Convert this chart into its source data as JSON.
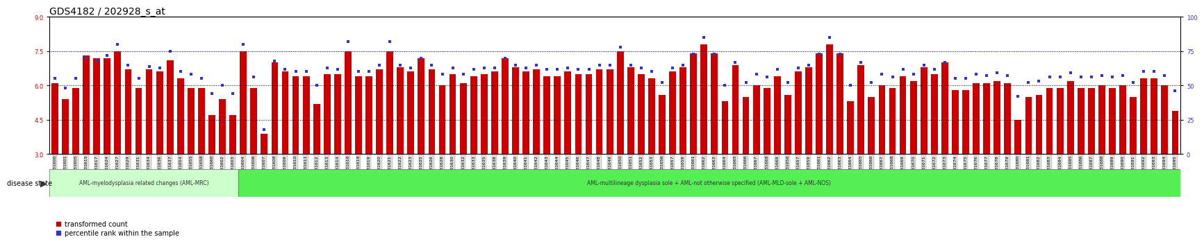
{
  "title": "GDS4182 / 202928_s_at",
  "samples": [
    "GSM531600",
    "GSM531601",
    "GSM531605",
    "GSM531615",
    "GSM531617",
    "GSM531624",
    "GSM531627",
    "GSM531629",
    "GSM531631",
    "GSM531634",
    "GSM531636",
    "GSM531637",
    "GSM531654",
    "GSM531655",
    "GSM531658",
    "GSM531660",
    "GSM531602",
    "GSM531603",
    "GSM531604",
    "GSM531606",
    "GSM531607",
    "GSM531608",
    "GSM531609",
    "GSM531610",
    "GSM531611",
    "GSM531612",
    "GSM531613",
    "GSM531614",
    "GSM531616",
    "GSM531618",
    "GSM531619",
    "GSM531620",
    "GSM531621",
    "GSM531622",
    "GSM531623",
    "GSM531625",
    "GSM531626",
    "GSM531628",
    "GSM531630",
    "GSM531632",
    "GSM531633",
    "GSM531635",
    "GSM531638",
    "GSM531639",
    "GSM531640",
    "GSM531641",
    "GSM531642",
    "GSM531643",
    "GSM531644",
    "GSM531645",
    "GSM531646",
    "GSM531647",
    "GSM531648",
    "GSM531649",
    "GSM531650",
    "GSM531651",
    "GSM531652",
    "GSM531653",
    "GSM531656",
    "GSM531657",
    "GSM531659",
    "GSM531661",
    "GSM531662",
    "GSM531663",
    "GSM531664",
    "GSM531665",
    "GSM531666",
    "GSM531667",
    "GSM531668",
    "GSM531669",
    "GSM531656",
    "GSM531657",
    "GSM531659",
    "GSM531661",
    "GSM531662",
    "GSM531663",
    "GSM531664",
    "GSM531665",
    "GSM531666",
    "GSM531667",
    "GSM531668",
    "GSM531669",
    "GSM531670",
    "GSM531671",
    "GSM531672",
    "GSM531673",
    "GSM531674",
    "GSM531675",
    "GSM531676",
    "GSM531677",
    "GSM531678",
    "GSM531679",
    "GSM531680",
    "GSM531681",
    "GSM531682",
    "GSM531683",
    "GSM531684",
    "GSM531685",
    "GSM531686",
    "GSM531687",
    "GSM531688",
    "GSM531689",
    "GSM531690",
    "GSM531691",
    "GSM531692",
    "GSM531693",
    "GSM531694",
    "GSM531695"
  ],
  "bar_values": [
    6.1,
    5.4,
    5.9,
    7.3,
    7.2,
    7.2,
    7.5,
    6.7,
    5.9,
    6.7,
    6.6,
    7.1,
    6.3,
    5.9,
    5.9,
    4.7,
    5.4,
    4.7,
    7.5,
    5.9,
    3.9,
    7.0,
    6.6,
    6.4,
    6.4,
    5.2,
    6.5,
    6.5,
    7.5,
    6.4,
    6.4,
    6.7,
    7.5,
    6.8,
    6.6,
    7.2,
    6.7,
    6.0,
    6.5,
    6.1,
    6.4,
    6.5,
    6.6,
    7.2,
    6.8,
    6.6,
    6.7,
    6.4,
    6.4,
    6.6,
    6.5,
    6.5,
    6.7,
    6.7,
    7.5,
    6.8,
    6.5,
    6.3,
    5.6,
    6.6,
    6.8,
    7.4,
    7.8,
    7.4,
    5.3,
    6.9,
    5.5,
    6.0,
    5.9,
    6.4,
    5.6,
    6.6,
    6.8,
    7.4,
    7.8,
    7.4,
    5.3,
    6.9,
    5.5,
    6.0,
    5.9,
    6.4,
    6.2,
    6.8,
    6.5,
    7.0,
    5.8,
    5.8,
    6.1,
    6.1,
    6.2,
    6.1,
    4.5,
    5.5,
    5.6,
    5.9,
    5.9,
    6.2,
    5.9,
    5.9,
    6.0,
    5.9,
    6.0,
    5.5,
    6.3,
    6.3,
    6.0,
    4.9
  ],
  "dot_values": [
    55,
    48,
    55,
    70,
    68,
    72,
    80,
    65,
    55,
    64,
    63,
    75,
    60,
    58,
    55,
    44,
    50,
    44,
    80,
    56,
    18,
    68,
    62,
    60,
    60,
    50,
    63,
    62,
    82,
    60,
    60,
    65,
    82,
    65,
    63,
    70,
    65,
    58,
    63,
    58,
    62,
    63,
    63,
    70,
    65,
    63,
    65,
    62,
    62,
    63,
    62,
    62,
    65,
    65,
    78,
    65,
    63,
    60,
    52,
    63,
    65,
    73,
    85,
    73,
    50,
    67,
    52,
    58,
    56,
    62,
    52,
    63,
    65,
    73,
    85,
    73,
    50,
    67,
    52,
    58,
    56,
    62,
    58,
    65,
    62,
    67,
    55,
    55,
    58,
    57,
    59,
    57,
    42,
    52,
    53,
    56,
    56,
    59,
    56,
    56,
    57,
    56,
    57,
    52,
    60,
    60,
    57,
    46
  ],
  "aml_mrc_count": 18,
  "aml_mld_count": 90,
  "ylim_left": [
    3,
    9
  ],
  "ylim_right": [
    0,
    100
  ],
  "yticks_left": [
    3,
    4.5,
    6,
    7.5,
    9
  ],
  "yticks_right": [
    0,
    25,
    50,
    75,
    100
  ],
  "bar_color": "#cc0000",
  "dot_color": "#3333cc",
  "hline_y_left": [
    7.5,
    6.0,
    4.5
  ],
  "hline_y_right": 75,
  "aml_mrc_label": "AML-myelodysplasia related changes (AML-MRC)",
  "aml_mld_label": "AML-multilineage dysplasia sole + AML-not otherwise specified (AML-MLD-sole + AML-NOS)",
  "aml_mrc_color": "#ccffcc",
  "aml_mld_color": "#55ee55",
  "disease_state_label": "disease state",
  "legend_bar_label": "transformed count",
  "legend_dot_label": "percentile rank within the sample",
  "background_color": "#ffffff",
  "title_fontsize": 10,
  "tick_fontsize": 4.5,
  "axis_color_left": "#cc0000",
  "axis_color_right": "#3333cc"
}
